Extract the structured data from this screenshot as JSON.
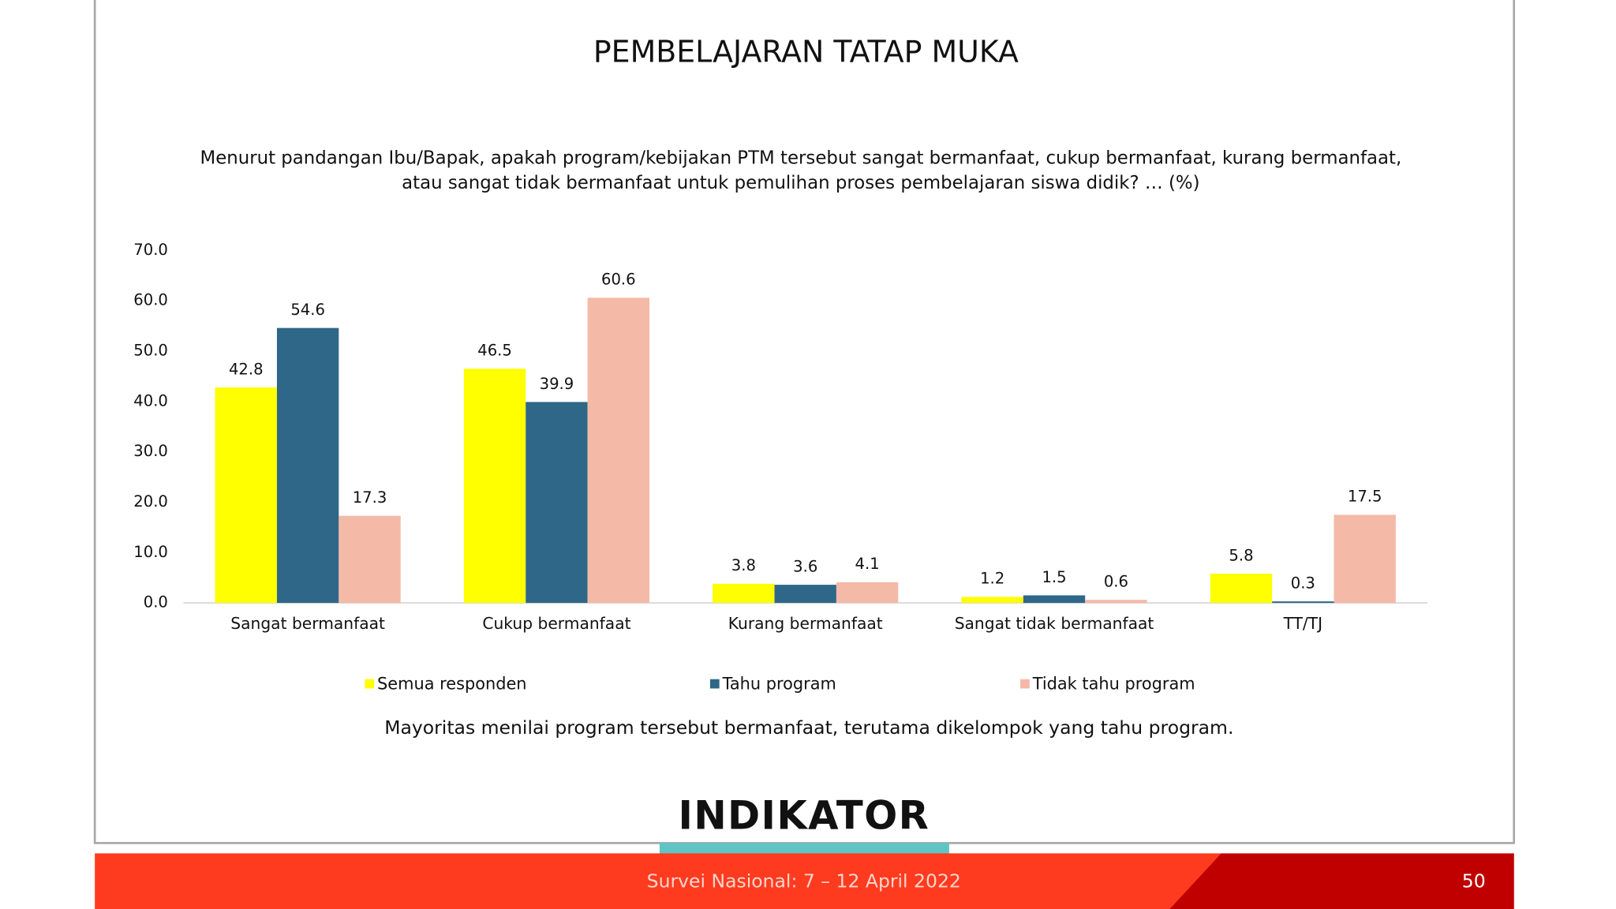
{
  "chart_data": {
    "type": "bar",
    "title": "PEMBELAJARAN TATAP MUKA",
    "subtitle": [
      "Menurut pandangan Ibu/Bapak, apakah program/kebijakan PTM tersebut sangat bermanfaat, cukup bermanfaat, kurang bermanfaat,",
      "atau sangat tidak bermanfaat untuk pemulihan proses pembelajaran siswa didik? … (%)"
    ],
    "categories": [
      "Sangat bermanfaat",
      "Cukup bermanfaat",
      "Kurang bermanfaat",
      "Sangat tidak bermanfaat",
      "TT/TJ"
    ],
    "series": [
      {
        "name": "Semua responden",
        "color": "#ffff00",
        "values": [
          42.8,
          46.5,
          3.8,
          1.2,
          5.8
        ]
      },
      {
        "name": "Tahu program",
        "color": "#2e6787",
        "values": [
          54.6,
          39.9,
          3.6,
          1.5,
          0.3
        ]
      },
      {
        "name": "Tidak tahu program",
        "color": "#f4b9a7",
        "values": [
          17.3,
          60.6,
          4.1,
          0.6,
          17.5
        ]
      }
    ],
    "ylim": [
      0,
      70
    ],
    "yticks": [
      {
        "value": 0,
        "label": "0.0"
      },
      {
        "value": 10,
        "label": "10.0"
      },
      {
        "value": 20,
        "label": "20.0"
      },
      {
        "value": 30,
        "label": "30.0"
      },
      {
        "value": 40,
        "label": "40.0"
      },
      {
        "value": 50,
        "label": "50.0"
      },
      {
        "value": 60,
        "label": "60.0"
      },
      {
        "value": 70,
        "label": "70.0"
      }
    ],
    "grid": false,
    "legend": "bottom",
    "annotation": "Mayoritas menilai program tersebut bermanfaat, terutama dikelompok yang tahu program."
  },
  "logo": "INDIKATOR",
  "footer": {
    "text": "Survei Nasional: 7 – 12 April 2022",
    "page": "50"
  }
}
